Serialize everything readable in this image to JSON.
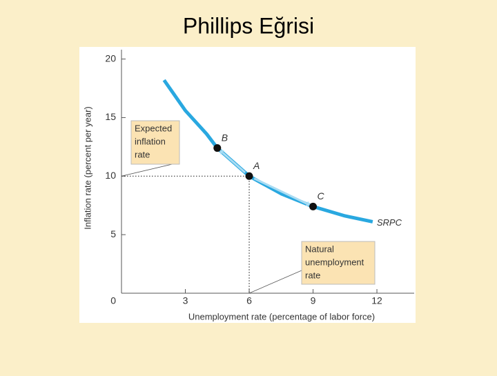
{
  "chart_data": {
    "type": "line",
    "title": "Phillips Eğrisi",
    "x_label": "Unemployment rate (percentage of labor force)",
    "y_label": "Inflation rate (percent per year)",
    "x": [
      2,
      3,
      4,
      4.5,
      6,
      7.5,
      9,
      10.5,
      11.8
    ],
    "series": [
      {
        "name": "SRPC",
        "color": "#29a8e0",
        "values": [
          18.2,
          15.6,
          13.6,
          12.4,
          10,
          8.5,
          7.4,
          6.6,
          6.1
        ]
      }
    ],
    "points": [
      {
        "label": "B",
        "x": 4.5,
        "y": 12.4
      },
      {
        "label": "A",
        "x": 6,
        "y": 10
      },
      {
        "label": "C",
        "x": 9,
        "y": 7.4
      }
    ],
    "annotations": [
      [
        "Expected",
        "inflation",
        "rate"
      ],
      [
        "Natural",
        "unemployment",
        "rate"
      ]
    ],
    "xlim": [
      0,
      13.75
    ],
    "ylim": [
      0,
      20.8
    ],
    "xticks": [
      0,
      3,
      6,
      9,
      12
    ],
    "yticks": [
      0,
      5,
      10,
      15,
      20
    ]
  }
}
